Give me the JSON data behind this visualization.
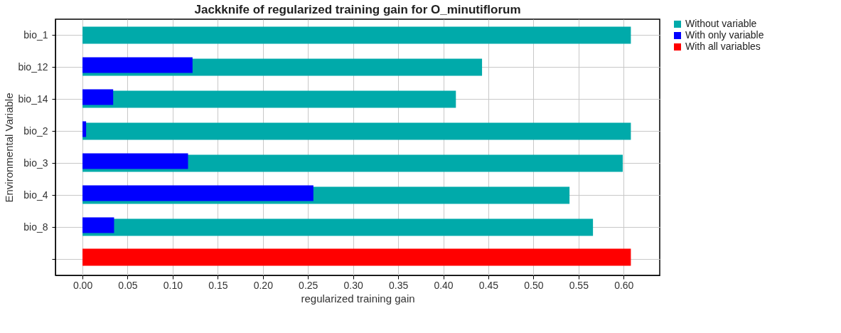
{
  "chart_data": {
    "type": "bar",
    "orientation": "horizontal",
    "title": "Jackknife of regularized training gain for O_minutiflorum",
    "xlabel": "regularized training gain",
    "ylabel": "Environmental Variable",
    "categories": [
      "bio_1",
      "bio_12",
      "bio_14",
      "bio_2",
      "bio_3",
      "bio_4",
      "bio_8",
      null
    ],
    "series": [
      {
        "name": "Without variable",
        "color": "#00aaaa",
        "values": [
          0.608,
          0.443,
          0.414,
          0.608,
          0.599,
          0.54,
          0.566,
          null
        ]
      },
      {
        "name": "With only variable",
        "color": "#0000ff",
        "values": [
          null,
          0.122,
          0.034,
          0.004,
          0.117,
          0.256,
          0.035,
          null
        ]
      },
      {
        "name": "With all variables",
        "color": "#ff0000",
        "values": [
          null,
          null,
          null,
          null,
          null,
          null,
          null,
          0.608
        ]
      }
    ],
    "xlim": [
      -0.03,
      0.64
    ],
    "xticks": [
      {
        "value": 0,
        "label": "0.00"
      },
      0.05,
      {
        "value": 0.1,
        "label": "0.10"
      },
      0.15,
      {
        "value": 0.2,
        "label": "0.20"
      },
      0.25,
      {
        "value": 0.3,
        "label": "0.30"
      },
      0.35,
      {
        "value": 0.4,
        "label": "0.40"
      },
      0.45,
      {
        "value": 0.5,
        "label": "0.50"
      },
      0.55,
      {
        "value": 0.6,
        "label": "0.60"
      }
    ],
    "grid": true,
    "legend": "top right"
  }
}
